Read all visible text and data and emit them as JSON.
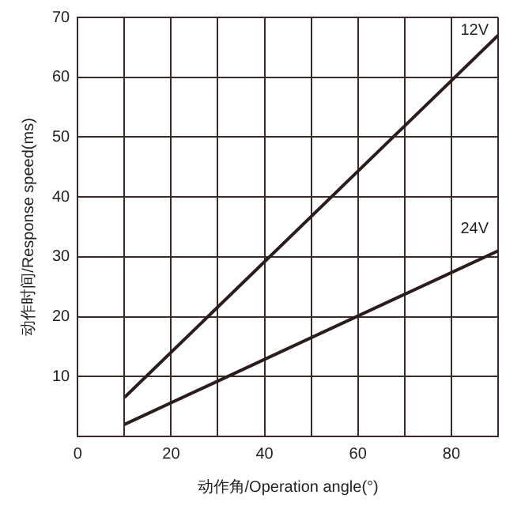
{
  "chart_data": {
    "type": "line",
    "xlabel": "动作角/Operation angle(°)",
    "ylabel": "动作时间/Response speed(ms)",
    "xlim": [
      0,
      90
    ],
    "ylim": [
      0,
      70
    ],
    "xticks": [
      0,
      {
        "value": 10,
        "label": null
      },
      20,
      {
        "value": 30,
        "label": null
      },
      40,
      {
        "value": 50,
        "label": null
      },
      60,
      {
        "value": 70,
        "label": null
      },
      80,
      {
        "value": 90,
        "label": null
      }
    ],
    "yticks": [
      {
        "value": 0,
        "label": null
      },
      10,
      20,
      30,
      40,
      50,
      60,
      70
    ],
    "grid": true,
    "legend": false,
    "marker": "none",
    "line_style": "solid",
    "x": [
      10,
      90
    ],
    "series": [
      {
        "name": "12V",
        "color": "#2b1d1d",
        "values": [
          6.5,
          67
        ]
      },
      {
        "name": "24V",
        "color": "#2b1d1d",
        "values": [
          2,
          31
        ]
      }
    ]
  }
}
